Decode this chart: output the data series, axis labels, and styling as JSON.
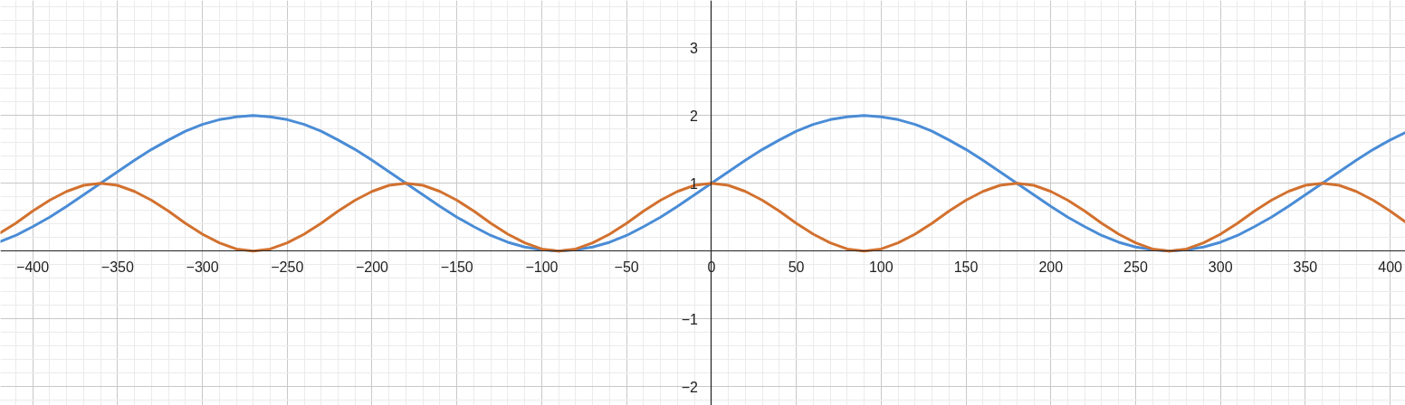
{
  "chart_data": {
    "type": "line",
    "xlim": [
      -419,
      409
    ],
    "ylim": [
      -2.28,
      3.7
    ],
    "xticks": [
      {
        "value": -400,
        "label": "−400"
      },
      {
        "value": -350,
        "label": "−350"
      },
      {
        "value": -300,
        "label": "−300"
      },
      {
        "value": -250,
        "label": "−250"
      },
      {
        "value": -200,
        "label": "−200"
      },
      {
        "value": -150,
        "label": "−150"
      },
      {
        "value": -100,
        "label": "−100"
      },
      {
        "value": -50,
        "label": "−50"
      },
      0,
      50,
      100,
      150,
      200,
      250,
      300,
      350,
      400
    ],
    "yticks": [
      {
        "value": -2,
        "label": "−2"
      },
      {
        "value": -1,
        "label": "−1"
      },
      1,
      2,
      3
    ],
    "grid": true,
    "x": [
      -419,
      -410,
      -400,
      -390,
      -380,
      -370,
      -360,
      -350,
      -340,
      -330,
      -320,
      -310,
      -300,
      -290,
      -280,
      -270,
      -260,
      -250,
      -240,
      -230,
      -220,
      -210,
      -200,
      -190,
      -180,
      -170,
      -160,
      -150,
      -140,
      -130,
      -120,
      -110,
      -100,
      -90,
      -80,
      -70,
      -60,
      -50,
      -40,
      -30,
      -20,
      -10,
      0,
      10,
      20,
      30,
      40,
      50,
      60,
      70,
      80,
      90,
      100,
      110,
      120,
      130,
      140,
      150,
      160,
      170,
      180,
      190,
      200,
      210,
      220,
      230,
      240,
      250,
      260,
      270,
      280,
      290,
      300,
      310,
      320,
      330,
      340,
      350,
      360,
      370,
      380,
      390,
      400,
      409
    ],
    "series": [
      {
        "color": "#4a8cd6",
        "values": [
          0.14,
          0.23,
          0.36,
          0.5,
          0.66,
          0.83,
          1,
          1.17,
          1.34,
          1.5,
          1.64,
          1.77,
          1.87,
          1.94,
          1.98,
          2,
          1.98,
          1.94,
          1.87,
          1.77,
          1.64,
          1.5,
          1.34,
          1.17,
          1,
          0.83,
          0.66,
          0.5,
          0.36,
          0.23,
          0.13,
          0.06,
          0.02,
          0,
          0.02,
          0.06,
          0.13,
          0.23,
          0.36,
          0.5,
          0.66,
          0.83,
          1,
          1.17,
          1.34,
          1.5,
          1.64,
          1.77,
          1.87,
          1.94,
          1.98,
          2,
          1.98,
          1.94,
          1.87,
          1.77,
          1.64,
          1.5,
          1.34,
          1.17,
          1,
          0.83,
          0.66,
          0.5,
          0.36,
          0.23,
          0.13,
          0.06,
          0.02,
          0,
          0.02,
          0.06,
          0.13,
          0.23,
          0.36,
          0.5,
          0.66,
          0.83,
          1,
          1.17,
          1.34,
          1.5,
          1.64,
          1.75
        ]
      },
      {
        "color": "#d2712f",
        "values": [
          0.27,
          0.41,
          0.59,
          0.75,
          0.88,
          0.97,
          1,
          0.97,
          0.88,
          0.75,
          0.59,
          0.41,
          0.25,
          0.12,
          0.03,
          0,
          0.03,
          0.12,
          0.25,
          0.41,
          0.59,
          0.75,
          0.88,
          0.97,
          1,
          0.97,
          0.88,
          0.75,
          0.59,
          0.41,
          0.25,
          0.12,
          0.03,
          0,
          0.03,
          0.12,
          0.25,
          0.41,
          0.59,
          0.75,
          0.88,
          0.97,
          1,
          0.97,
          0.88,
          0.75,
          0.59,
          0.41,
          0.25,
          0.12,
          0.03,
          0,
          0.03,
          0.12,
          0.25,
          0.41,
          0.59,
          0.75,
          0.88,
          0.97,
          1,
          0.97,
          0.88,
          0.75,
          0.59,
          0.41,
          0.25,
          0.12,
          0.03,
          0,
          0.03,
          0.12,
          0.25,
          0.41,
          0.59,
          0.75,
          0.88,
          0.97,
          1,
          0.97,
          0.88,
          0.75,
          0.59,
          0.43
        ]
      }
    ]
  }
}
